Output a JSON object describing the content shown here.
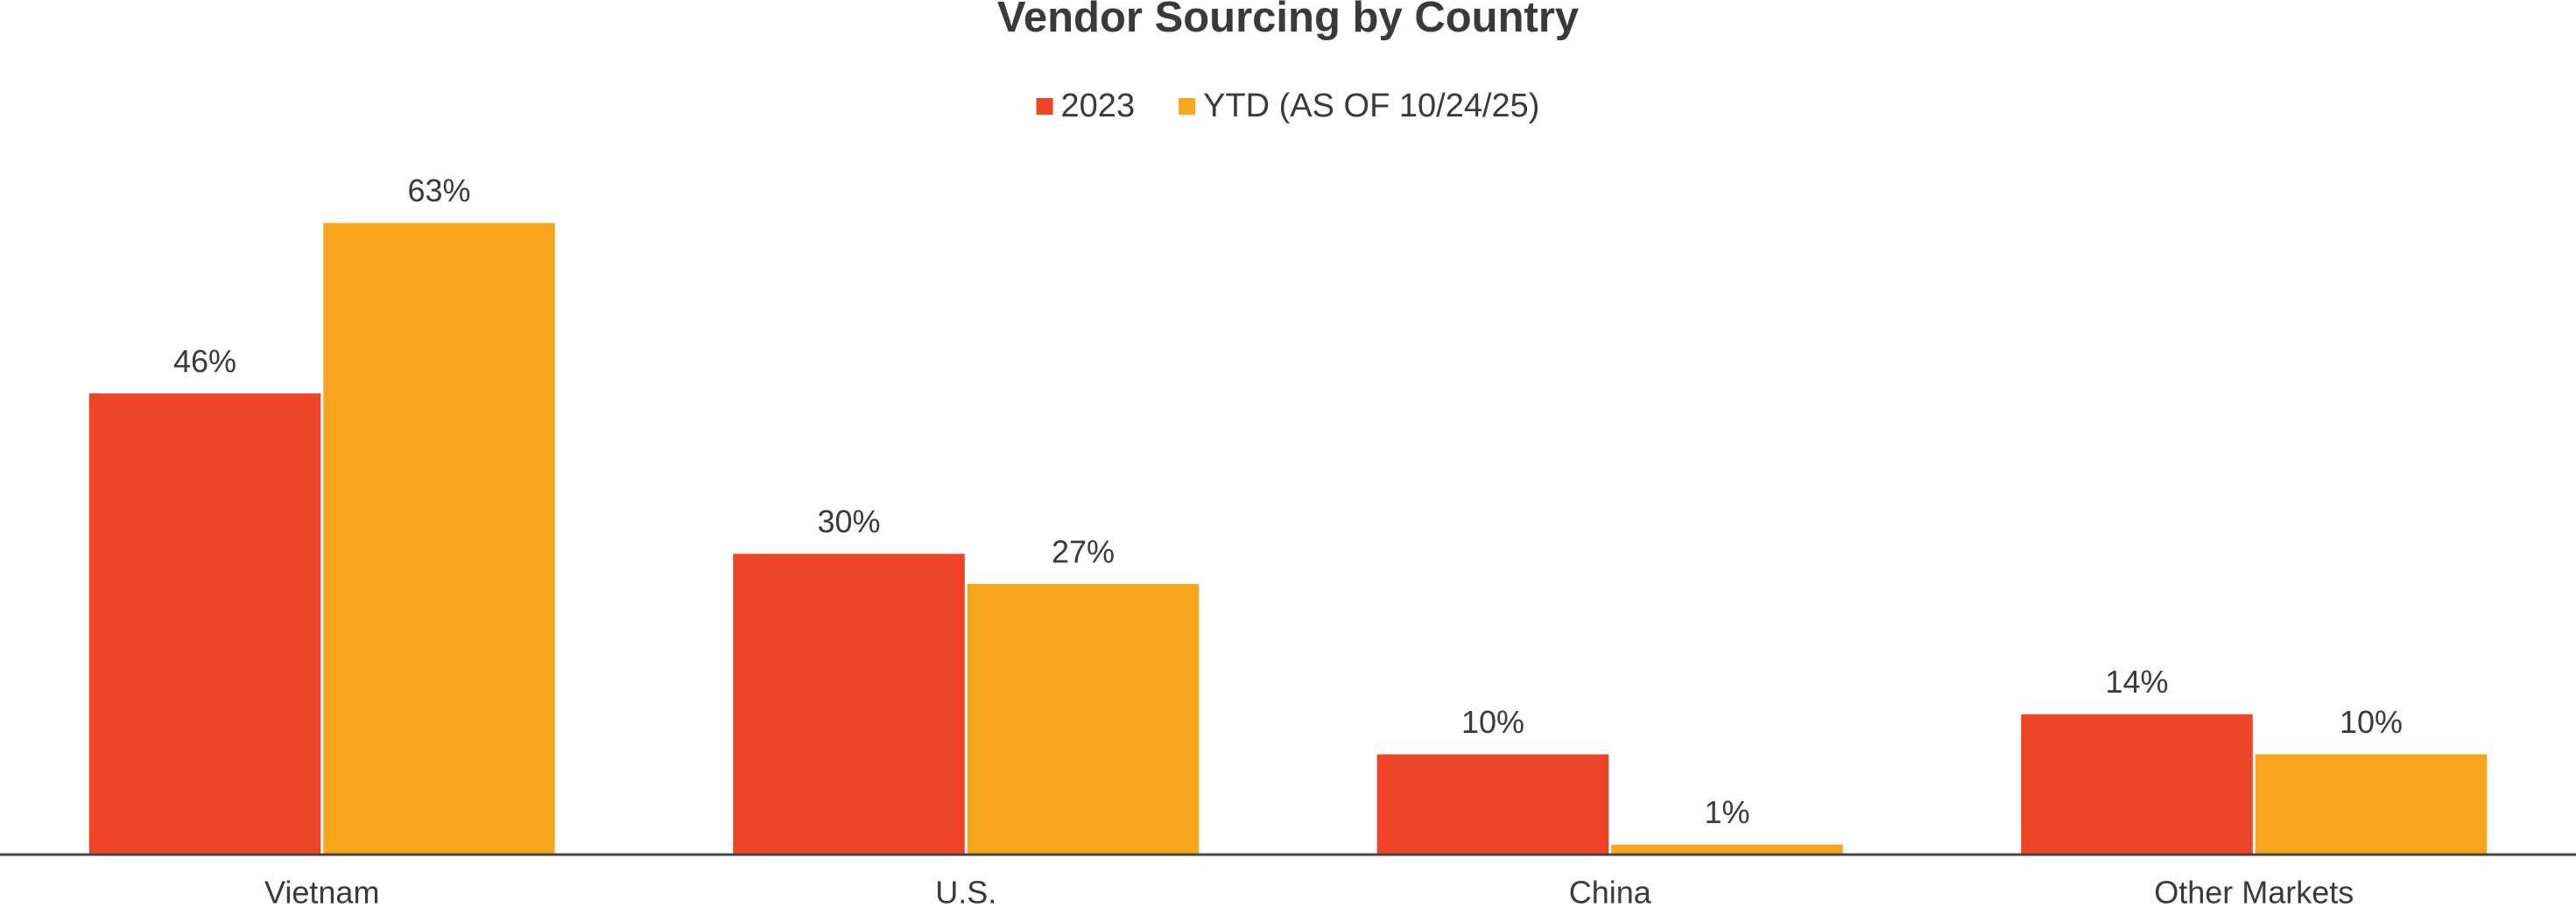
{
  "chart_data": {
    "type": "bar",
    "title": "Vendor Sourcing by Country",
    "categories": [
      "Vietnam",
      "U.S.",
      "China",
      "Other Markets"
    ],
    "series": [
      {
        "name": "2023",
        "color": "#ee4428",
        "values": [
          46,
          30,
          10,
          14
        ],
        "value_labels": [
          "46%",
          "30%",
          "10%",
          "14%"
        ]
      },
      {
        "name": "YTD (AS OF 10/24/25)",
        "color": "#f7a61e",
        "values": [
          63,
          27,
          1,
          10
        ],
        "value_labels": [
          "63%",
          "27%",
          "1%",
          "10%"
        ]
      }
    ],
    "legend": "top"
  }
}
